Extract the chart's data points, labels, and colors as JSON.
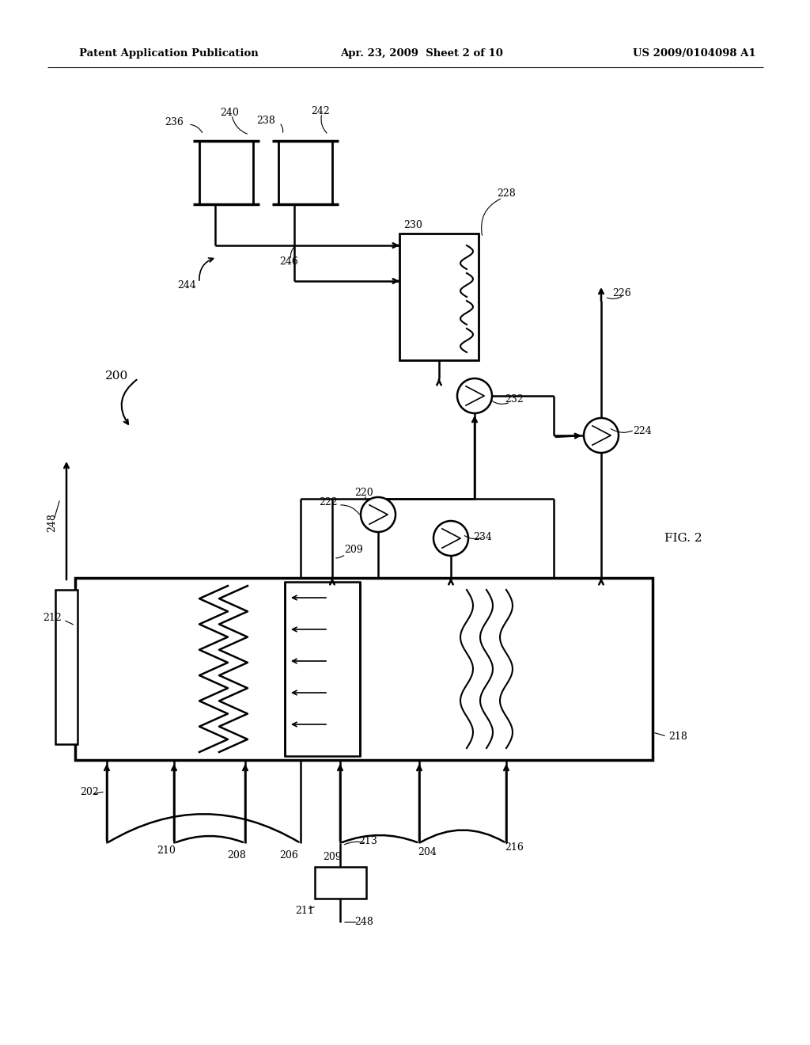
{
  "title_left": "Patent Application Publication",
  "title_mid": "Apr. 23, 2009  Sheet 2 of 10",
  "title_right": "US 2009/0104098 A1",
  "fig_label": "FIG. 2",
  "bg_color": "#ffffff",
  "lc": "#000000",
  "lw": 1.6
}
